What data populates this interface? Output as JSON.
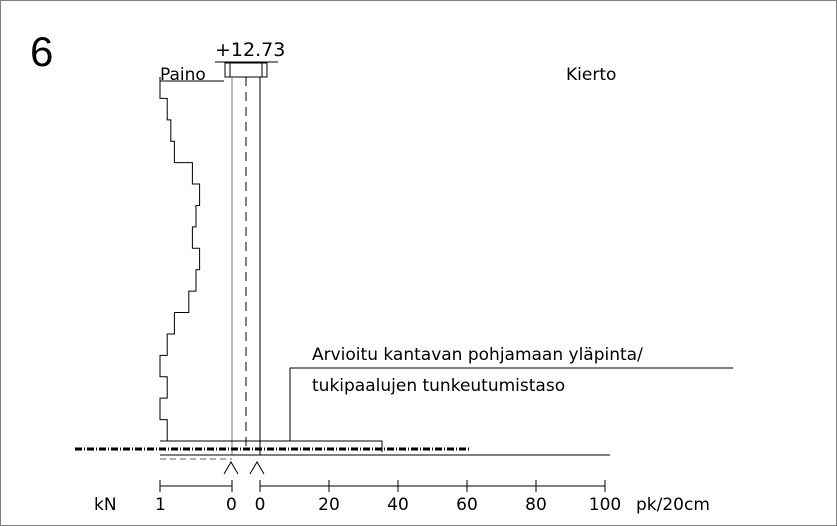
{
  "figure": {
    "number": "6",
    "elevation": "+12.73",
    "weight_label": "Paino",
    "rotation_label": "Kierto",
    "annotation": {
      "line1": "Arvioitu kantavan pohjamaan yläpinta/",
      "line2": "tukipaalujen tunkeutumistaso"
    }
  },
  "axis": {
    "kn_label": "kN",
    "kn_ticks": [
      "1",
      "0"
    ],
    "pk_ticks": [
      "0",
      "20",
      "40",
      "60",
      "80",
      "100"
    ],
    "pk_unit": "pk/20cm"
  },
  "chart_data": {
    "type": "step",
    "title": "",
    "series": [
      {
        "name": "Paino",
        "depth_steps": [
          0,
          1,
          2,
          3,
          4,
          5,
          6,
          7,
          8,
          9,
          10,
          11,
          12,
          13,
          14,
          15,
          16
        ],
        "kn_values": [
          1.0,
          0.9,
          0.85,
          0.8,
          0.55,
          0.45,
          0.5,
          0.55,
          0.45,
          0.5,
          0.6,
          0.8,
          0.9,
          1.0,
          0.9,
          1.0,
          0.9
        ]
      }
    ],
    "pk_bar": {
      "name": "",
      "pk_per_20cm": 35
    },
    "xlim_pk": [
      0,
      100
    ]
  },
  "colors": {
    "line": "#000000",
    "frame": "#808080"
  }
}
